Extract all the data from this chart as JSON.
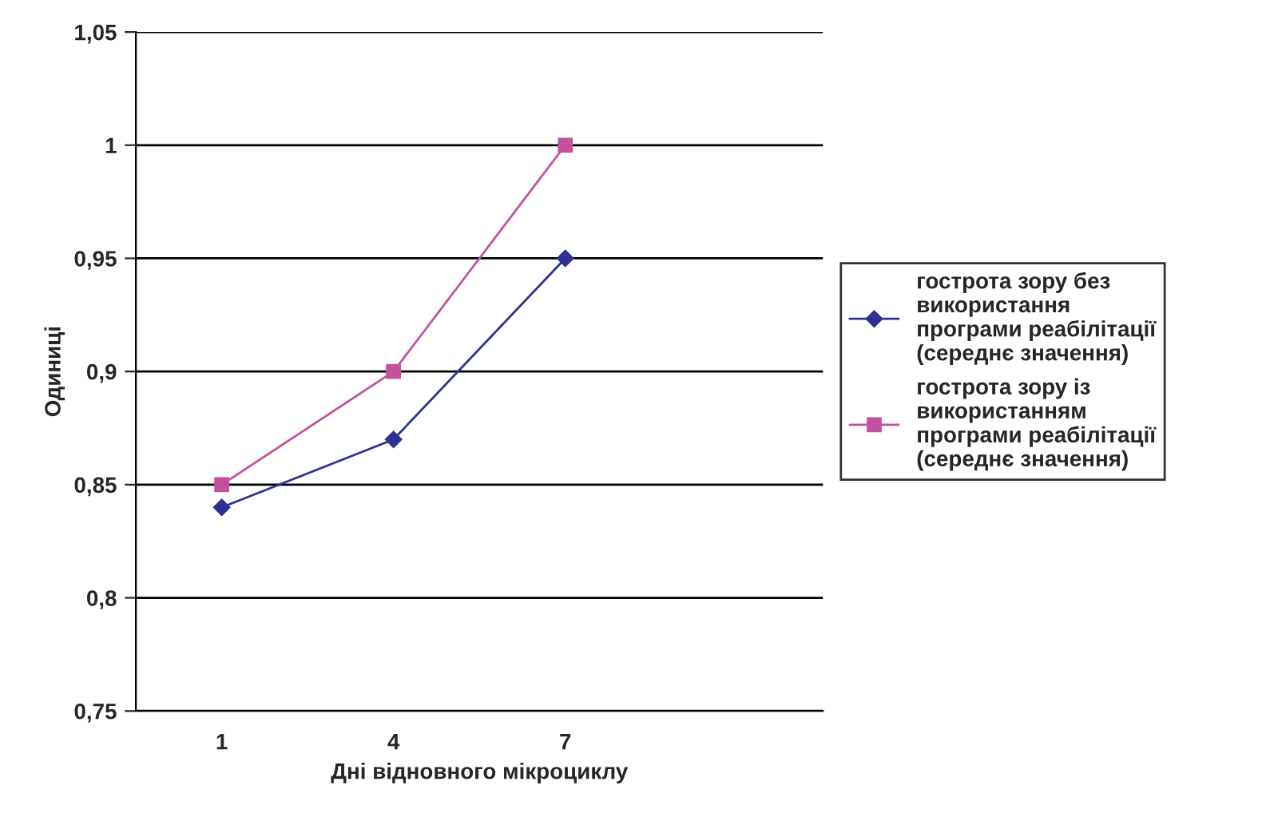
{
  "chart_data": {
    "type": "line",
    "xlabel": "Дні відновного мікроциклу",
    "ylabel": "Одиниці",
    "categories": [
      "1",
      "4",
      "7",
      null
    ],
    "series": [
      {
        "name": "гострота зору без\nвикористання\nпрограми реабілітації\n(середнє значення)",
        "color": "#2e3192",
        "marker": "diamond",
        "values": [
          0.84,
          0.87,
          0.95,
          null
        ]
      },
      {
        "name": "гострота зору із\nвикористанням\nпрограми реабілітації\n(середнє значення)",
        "color": "#c4509e",
        "marker": "square",
        "values": [
          0.85,
          0.9,
          1.0,
          null
        ]
      }
    ],
    "ylim": [
      0.75,
      1.05
    ],
    "yticks": [
      {
        "value": 0.75,
        "label": "0,75"
      },
      {
        "value": 0.8,
        "label": "0,8"
      },
      {
        "value": 0.85,
        "label": "0,85"
      },
      {
        "value": 0.9,
        "label": "0,9"
      },
      {
        "value": 0.95,
        "label": "0,95"
      },
      {
        "value": 1,
        "label": "1"
      },
      {
        "value": 1.05,
        "label": "1,05"
      }
    ],
    "grid": "y",
    "legend": "right",
    "line_style": "solid"
  }
}
